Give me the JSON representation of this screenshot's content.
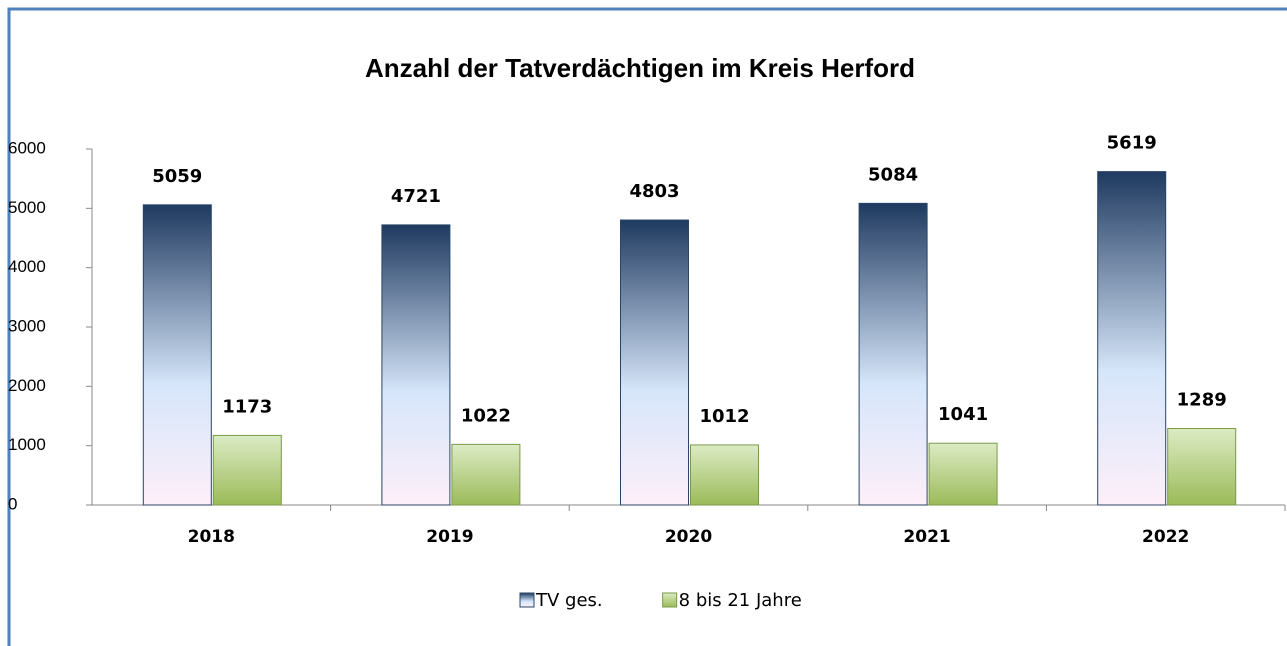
{
  "chart_data": {
    "type": "bar",
    "title": "Anzahl der Tatverdächtigen im Kreis Herford",
    "categories": [
      "2018",
      "2019",
      "2020",
      "2021",
      "2022"
    ],
    "series": [
      {
        "name": "TV ges.",
        "color": "#1f3a60",
        "values": [
          5059,
          4721,
          4803,
          5084,
          5619
        ]
      },
      {
        "name": "8 bis 21 Jahre",
        "color": "#9bbb59",
        "values": [
          1173,
          1022,
          1012,
          1041,
          1289
        ]
      }
    ],
    "ylim": [
      0,
      6000
    ],
    "yticks": [
      0,
      1000,
      2000,
      3000,
      4000,
      5000,
      6000
    ]
  }
}
